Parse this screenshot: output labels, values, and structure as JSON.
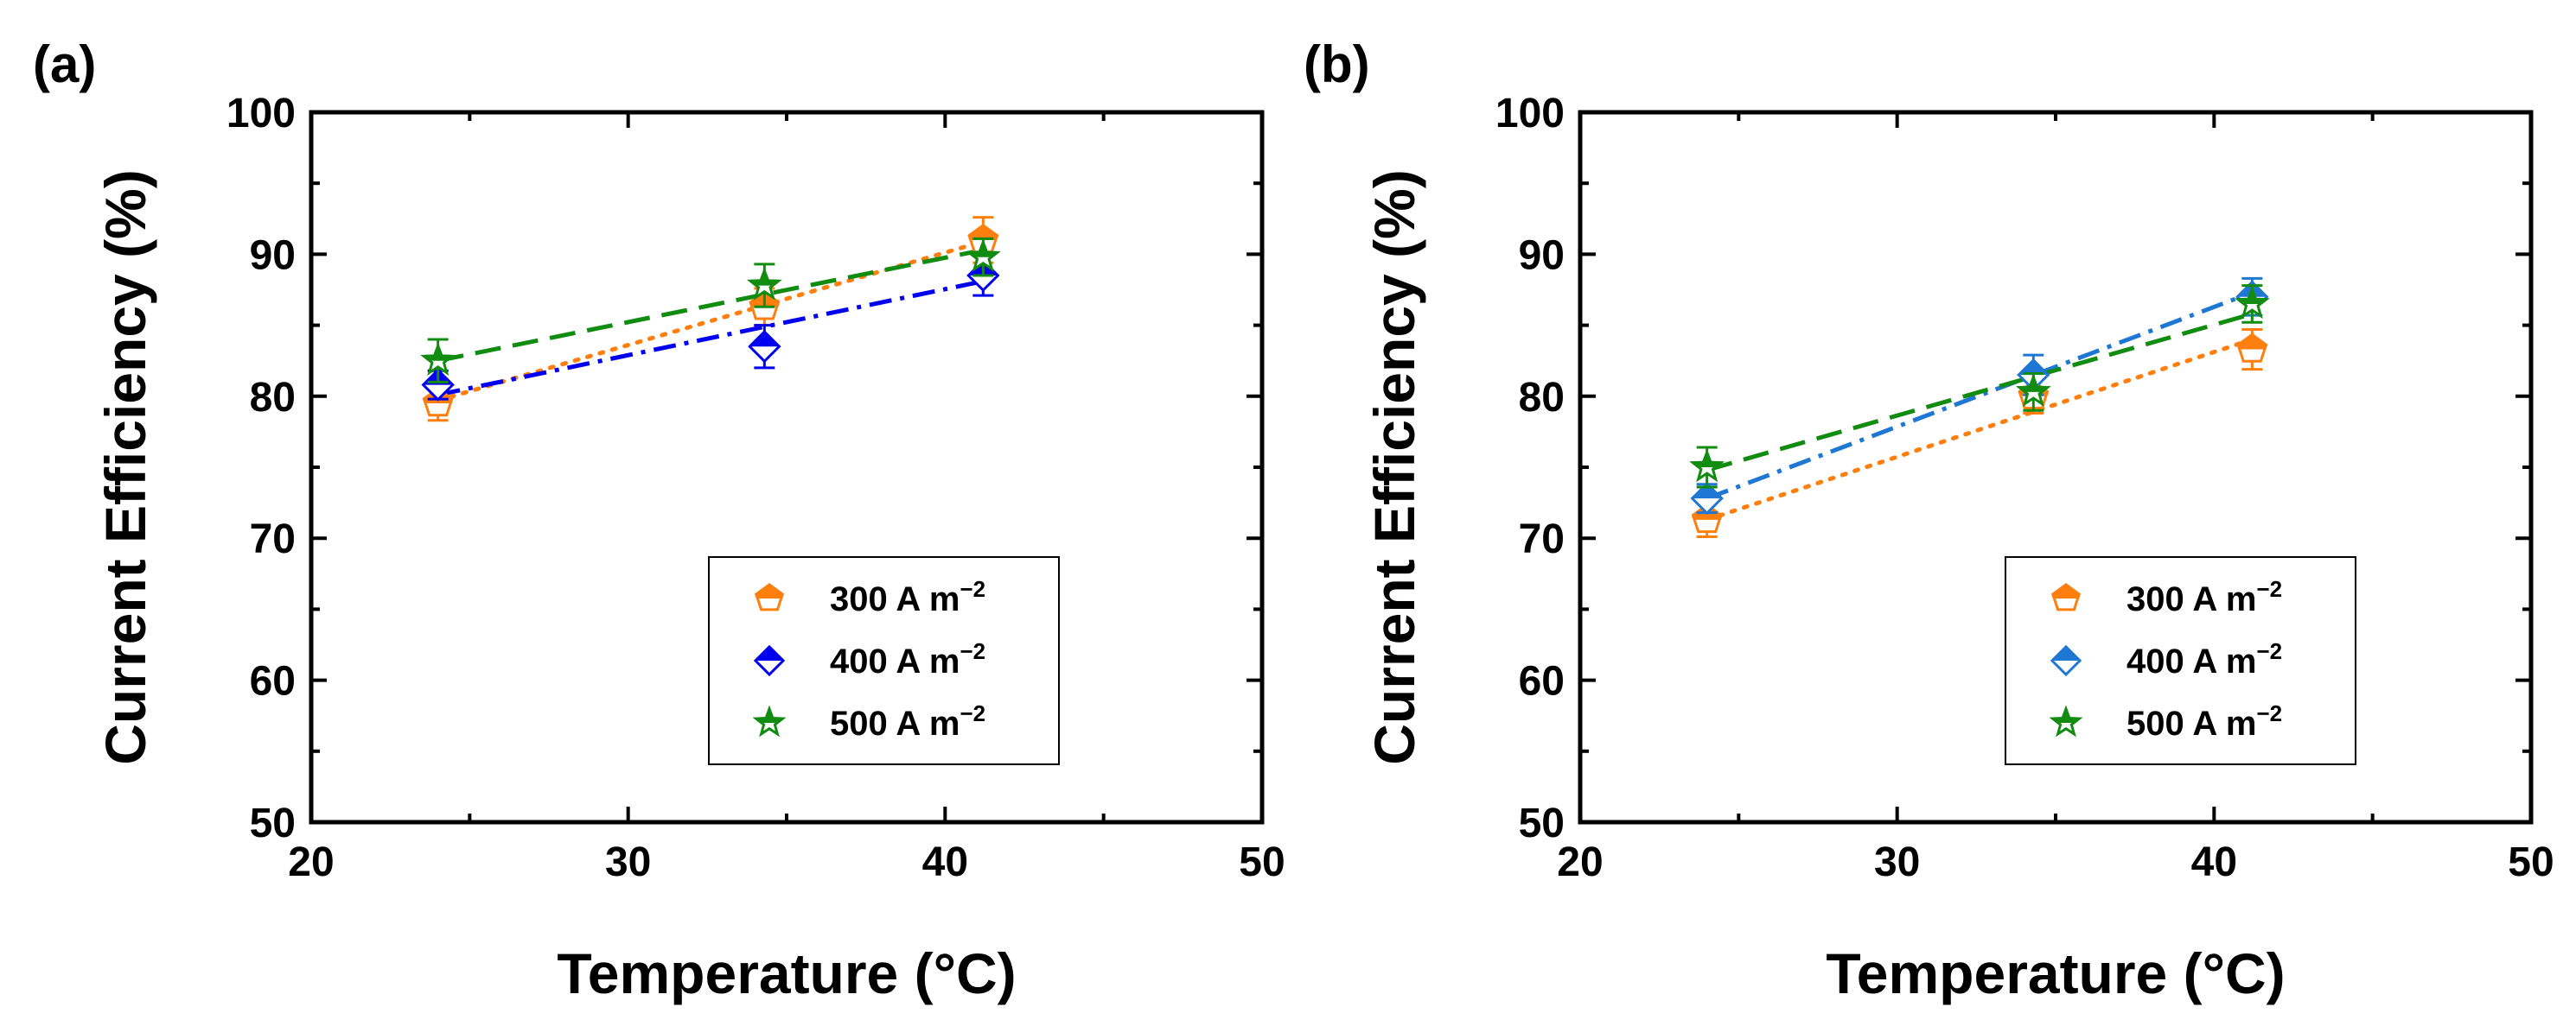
{
  "colors": {
    "300": "#ff7f0e",
    "400a": "#0000ee",
    "400b": "#1f77d4",
    "500": "#118c11"
  },
  "chart_data": [
    {
      "type": "scatter",
      "panel_label": "(a)",
      "xlabel": "Temperature (°C)",
      "ylabel": "Current Efficiency (%)",
      "xlim": [
        20,
        50
      ],
      "ylim": [
        50,
        100
      ],
      "xticks": [
        20,
        30,
        40,
        50
      ],
      "yticks": [
        50,
        60,
        70,
        80,
        90,
        100
      ],
      "grid": false,
      "legend_position": "bottom-right",
      "series": [
        {
          "name": "300 A m⁻²",
          "legend_main": "300 A m",
          "legend_sup": "−2",
          "color_key": "300",
          "marker": "pentagon",
          "line_style": "dotted",
          "x": [
            24,
            34.3,
            41.2
          ],
          "y": [
            79.5,
            86.3,
            91.0
          ],
          "yerr": [
            1.2,
            1.3,
            1.6
          ],
          "fit": [
            [
              24,
              79.7
            ],
            [
              41.2,
              90.9
            ]
          ]
        },
        {
          "name": "400 A m⁻²",
          "legend_main": "400 A m",
          "legend_sup": "−2",
          "color_key": "400a",
          "marker": "diamond",
          "line_style": "dashdot",
          "x": [
            24,
            34.3,
            41.2
          ],
          "y": [
            80.8,
            83.5,
            88.5
          ],
          "yerr": [
            1.0,
            1.5,
            1.4
          ],
          "fit": [
            [
              24,
              80.1
            ],
            [
              41.2,
              88.1
            ]
          ]
        },
        {
          "name": "500 A m⁻²",
          "legend_main": "500 A m",
          "legend_sup": "−2",
          "color_key": "500",
          "marker": "star",
          "line_style": "dashed",
          "x": [
            24,
            34.3,
            41.2
          ],
          "y": [
            82.5,
            87.8,
            89.8
          ],
          "yerr": [
            1.5,
            1.5,
            1.3
          ],
          "fit": [
            [
              24,
              82.5
            ],
            [
              41.2,
              90.3
            ]
          ]
        }
      ]
    },
    {
      "type": "scatter",
      "panel_label": "(b)",
      "xlabel": "Temperature (°C)",
      "ylabel": "Current Efficiency (%)",
      "xlim": [
        20,
        50
      ],
      "ylim": [
        50,
        100
      ],
      "xticks": [
        20,
        30,
        40,
        50
      ],
      "yticks": [
        50,
        60,
        70,
        80,
        90,
        100
      ],
      "grid": false,
      "legend_position": "bottom-right",
      "series": [
        {
          "name": "300 A m⁻²",
          "legend_main": "300 A m",
          "legend_sup": "−2",
          "color_key": "300",
          "marker": "pentagon",
          "line_style": "dotted",
          "x": [
            24,
            34.3,
            41.2
          ],
          "y": [
            71.3,
            80.0,
            83.3
          ],
          "yerr": [
            1.2,
            1.2,
            1.4
          ],
          "fit": [
            [
              24,
              71.3
            ],
            [
              41.2,
              84.0
            ]
          ]
        },
        {
          "name": "400 A m⁻²",
          "legend_main": "400 A m",
          "legend_sup": "−2",
          "color_key": "400b",
          "marker": "diamond",
          "line_style": "dashdot",
          "x": [
            24,
            34.3,
            41.2
          ],
          "y": [
            72.8,
            81.5,
            87.0
          ],
          "yerr": [
            1.0,
            1.4,
            1.3
          ],
          "fit": [
            [
              24,
              72.8
            ],
            [
              41.2,
              87.3
            ]
          ]
        },
        {
          "name": "500 A m⁻²",
          "legend_main": "500 A m",
          "legend_sup": "−2",
          "color_key": "500",
          "marker": "star",
          "line_style": "dashed",
          "x": [
            24,
            34.3,
            41.2
          ],
          "y": [
            75.0,
            80.3,
            86.5
          ],
          "yerr": [
            1.4,
            1.3,
            1.3
          ],
          "fit": [
            [
              24,
              74.8
            ],
            [
              41.2,
              85.8
            ]
          ]
        }
      ]
    }
  ]
}
